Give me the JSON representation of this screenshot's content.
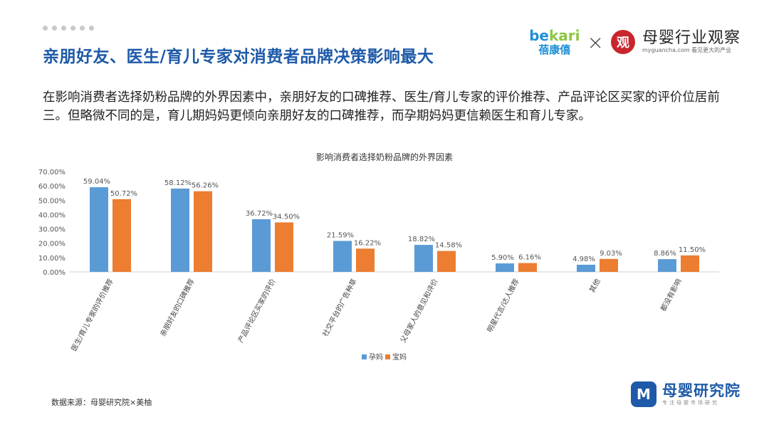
{
  "header": {
    "title": "亲朋好友、医生/育儿专家对消费者品牌决策影响最大",
    "description": "在影响消费者选择奶粉品牌的外界因素中，亲朋好友的口碑推荐、医生/育儿专家的评价推荐、产品评论区买家的评价位居前三。但略微不同的是，育儿期妈妈更倾向亲朋好友的口碑推荐，而孕期妈妈更信赖医生和育儿专家。"
  },
  "brand": {
    "bekari_logo": "bekari",
    "bekari_cn": "蓓康僖",
    "times": "×",
    "muying_seal": "观",
    "muying_name": "母婴行业观察",
    "muying_sub": "myguancha.com 看见更大的产业"
  },
  "source": "数据来源：母婴研究院×美柚",
  "footer": {
    "logo_name": "母婴研究院",
    "logo_sub": "专注母婴市场研究"
  },
  "colors": {
    "title": "#1e5aa8",
    "series1": "#5b9bd5",
    "series2": "#ed7d31"
  },
  "chart_data": {
    "type": "bar",
    "title": "影响消费者选择奶粉品牌的外界因素",
    "categories": [
      "医生/育儿专家的评价推荐",
      "亲朋好友的口碑推荐",
      "产品评论区买家的评价",
      "社交平台的广告种草",
      "父母家人的意见和评价",
      "明星代言/达人推荐",
      "其他",
      "都没有影响"
    ],
    "series": [
      {
        "name": "孕妈",
        "values": [
          59.04,
          58.12,
          36.72,
          21.59,
          18.82,
          5.9,
          4.98,
          8.86
        ],
        "labels": [
          "59.04%",
          "58.12%",
          "36.72%",
          "21.59%",
          "18.82%",
          "5.90%",
          "4.98%",
          "8.86%"
        ]
      },
      {
        "name": "宝妈",
        "values": [
          50.72,
          56.26,
          34.5,
          16.22,
          14.58,
          6.16,
          9.03,
          11.5
        ],
        "labels": [
          "50.72%",
          "56.26%",
          "34.50%",
          "16.22%",
          "14.58%",
          "6.16%",
          "9.03%",
          "11.50%"
        ]
      }
    ],
    "yticks": [
      "0.00%",
      "10.00%",
      "20.00%",
      "30.00%",
      "40.00%",
      "50.00%",
      "60.00%",
      "70.00%"
    ],
    "ylim": [
      0,
      70
    ],
    "grid": false,
    "legend": "bottom"
  }
}
